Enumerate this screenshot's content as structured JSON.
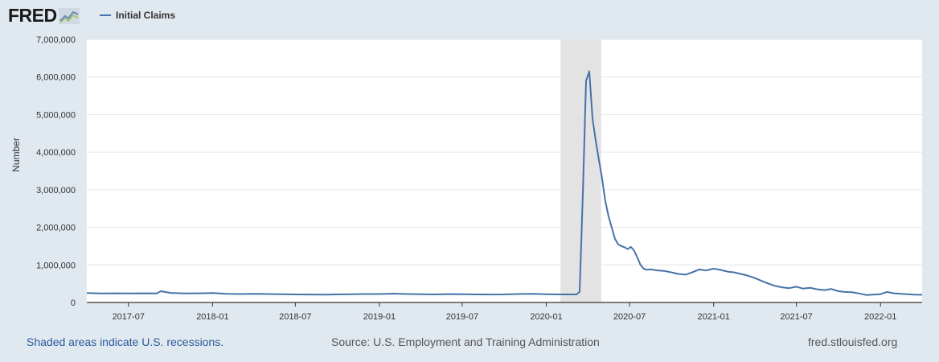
{
  "header": {
    "logo_text": "FRED",
    "logo_icon": "fred-chart-icon",
    "legend_label": "Initial Claims",
    "series_color": "#4572a7"
  },
  "footer": {
    "recession_note": "Shaded areas indicate U.S. recessions.",
    "source": "Source: U.S. Employment and Training Administration",
    "site": "fred.stlouisfed.org"
  },
  "chart_data": {
    "type": "line",
    "title": "",
    "xlabel": "",
    "ylabel": "Number",
    "ylim": [
      0,
      7000000
    ],
    "yticks": [
      0,
      1000000,
      2000000,
      3000000,
      4000000,
      5000000,
      6000000,
      7000000
    ],
    "ytick_labels": [
      "0",
      "1,000,000",
      "2,000,000",
      "3,000,000",
      "4,000,000",
      "5,000,000",
      "6,000,000",
      "7,000,000"
    ],
    "xlim": [
      "2017-04-01",
      "2022-04-02"
    ],
    "xticks": [
      "2017-07-01",
      "2018-01-01",
      "2018-07-01",
      "2019-01-01",
      "2019-07-01",
      "2020-01-01",
      "2020-07-01",
      "2021-01-01",
      "2021-07-01",
      "2022-01-01"
    ],
    "xtick_labels": [
      "2017-07",
      "2018-01",
      "2018-07",
      "2019-01",
      "2019-07",
      "2020-01",
      "2020-07",
      "2021-01",
      "2021-07",
      "2022-01"
    ],
    "recession": {
      "start": "2020-02-01",
      "end": "2020-04-30"
    },
    "grid": "horizontal",
    "legend_position": "top-left",
    "series": [
      {
        "name": "Initial Claims",
        "color": "#4572a7",
        "x": [
          "2017-04-01",
          "2017-05-01",
          "2017-06-01",
          "2017-07-01",
          "2017-08-01",
          "2017-09-01",
          "2017-09-10",
          "2017-10-01",
          "2017-11-01",
          "2017-12-01",
          "2018-01-01",
          "2018-02-01",
          "2018-03-01",
          "2018-04-01",
          "2018-05-01",
          "2018-06-01",
          "2018-07-01",
          "2018-08-01",
          "2018-09-01",
          "2018-10-01",
          "2018-11-01",
          "2018-12-01",
          "2019-01-01",
          "2019-02-01",
          "2019-03-01",
          "2019-04-01",
          "2019-05-01",
          "2019-06-01",
          "2019-07-01",
          "2019-08-01",
          "2019-09-01",
          "2019-10-01",
          "2019-11-01",
          "2019-12-01",
          "2020-01-01",
          "2020-02-01",
          "2020-03-07",
          "2020-03-14",
          "2020-03-21",
          "2020-03-28",
          "2020-04-04",
          "2020-04-11",
          "2020-04-18",
          "2020-04-25",
          "2020-05-02",
          "2020-05-09",
          "2020-05-16",
          "2020-05-23",
          "2020-05-30",
          "2020-06-06",
          "2020-06-13",
          "2020-06-20",
          "2020-06-27",
          "2020-07-04",
          "2020-07-11",
          "2020-07-18",
          "2020-07-25",
          "2020-08-01",
          "2020-08-08",
          "2020-08-15",
          "2020-08-22",
          "2020-09-01",
          "2020-09-15",
          "2020-10-01",
          "2020-10-15",
          "2020-11-01",
          "2020-11-15",
          "2020-12-01",
          "2020-12-15",
          "2021-01-01",
          "2021-01-15",
          "2021-02-01",
          "2021-02-15",
          "2021-03-01",
          "2021-03-15",
          "2021-04-01",
          "2021-04-15",
          "2021-05-01",
          "2021-05-15",
          "2021-06-01",
          "2021-06-15",
          "2021-07-01",
          "2021-07-15",
          "2021-08-01",
          "2021-08-15",
          "2021-09-01",
          "2021-09-15",
          "2021-10-01",
          "2021-10-15",
          "2021-11-01",
          "2021-11-15",
          "2021-12-01",
          "2021-12-15",
          "2022-01-01",
          "2022-01-15",
          "2022-02-01",
          "2022-02-15",
          "2022-03-01",
          "2022-03-15",
          "2022-04-02"
        ],
        "values": [
          250000,
          240000,
          245000,
          240000,
          245000,
          240000,
          300000,
          255000,
          240000,
          245000,
          250000,
          230000,
          225000,
          230000,
          225000,
          220000,
          215000,
          212000,
          210000,
          215000,
          220000,
          225000,
          225000,
          235000,
          225000,
          218000,
          215000,
          222000,
          218000,
          215000,
          212000,
          215000,
          225000,
          230000,
          220000,
          215000,
          215000,
          280000,
          2900000,
          5900000,
          6150000,
          4900000,
          4300000,
          3800000,
          3300000,
          2700000,
          2300000,
          2000000,
          1700000,
          1550000,
          1500000,
          1470000,
          1420000,
          1480000,
          1380000,
          1200000,
          1000000,
          900000,
          870000,
          880000,
          870000,
          850000,
          840000,
          800000,
          760000,
          740000,
          800000,
          880000,
          850000,
          900000,
          870000,
          820000,
          800000,
          760000,
          720000,
          650000,
          580000,
          500000,
          440000,
          400000,
          380000,
          420000,
          370000,
          390000,
          350000,
          330000,
          360000,
          300000,
          280000,
          270000,
          240000,
          200000,
          210000,
          220000,
          280000,
          240000,
          230000,
          220000,
          210000,
          205000
        ]
      }
    ]
  }
}
